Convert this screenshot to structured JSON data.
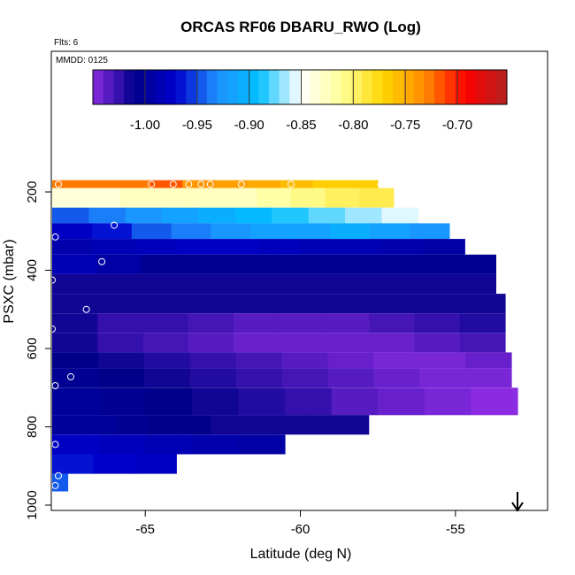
{
  "chart_data": {
    "type": "heatmap",
    "title": "ORCAS RF06 DBARU_RWO (Log)",
    "flts_label": "Flts: 6",
    "date_label": "MMDD: 0125",
    "xlabel": "Latitude (deg N)",
    "ylabel": "PSXC (mbar)",
    "xlim": [
      -68.0,
      -52.0
    ],
    "ylim": [
      1000,
      100
    ],
    "x_ticks": [
      -65,
      -60,
      -55
    ],
    "x_tick_labels": [
      "-65",
      "-60",
      "-55"
    ],
    "y_ticks": [
      200,
      400,
      600,
      800,
      1000
    ],
    "y_tick_labels": [
      "200",
      "400",
      "600",
      "800",
      "1000"
    ],
    "colorbar": {
      "vmin": -1.045,
      "vmax": -0.645,
      "ticks": [
        -1.0,
        -0.95,
        -0.9,
        -0.85,
        -0.8,
        -0.75,
        -0.7
      ],
      "tick_labels": [
        "-1.00",
        "-0.95",
        "-0.90",
        "-0.85",
        "-0.80",
        "-0.75",
        "-0.70"
      ],
      "colors": [
        "#8a2be2",
        "#00008b",
        "#0000cd",
        "#1e90ff",
        "#00bfff",
        "#ffffff",
        "#ffff99",
        "#ffd700",
        "#ff8c00",
        "#ff0000",
        "#b22222"
      ]
    },
    "bands": [
      {
        "p": [
          170,
          190
        ],
        "x_end": -57.5,
        "values": [
          -0.72,
          -0.72,
          -0.72,
          -0.71,
          -0.73,
          -0.735,
          -0.74,
          -0.75,
          -0.76,
          -0.76
        ]
      },
      {
        "p": [
          190,
          240
        ],
        "x_end": -57.0,
        "values": [
          -0.83,
          -0.83,
          -0.82,
          -0.82,
          -0.82,
          -0.82,
          -0.81,
          -0.8,
          -0.79,
          -0.785
        ]
      },
      {
        "p": [
          240,
          280
        ],
        "x_end": -56.2,
        "values": [
          -0.94,
          -0.93,
          -0.92,
          -0.91,
          -0.9,
          -0.89,
          -0.88,
          -0.87,
          -0.86,
          -0.85
        ]
      },
      {
        "p": [
          280,
          320
        ],
        "x_end": -55.2,
        "values": [
          -0.97,
          -0.96,
          -0.94,
          -0.93,
          -0.92,
          -0.91,
          -0.91,
          -0.9,
          -0.91,
          -0.92
        ]
      },
      {
        "p": [
          320,
          360
        ],
        "x_end": -54.7,
        "values": [
          -0.985,
          -0.98,
          -0.975,
          -0.97,
          -0.97,
          -0.975,
          -0.98,
          -0.98,
          -0.985,
          -0.99
        ]
      },
      {
        "p": [
          360,
          410
        ],
        "x_end": -53.7,
        "values": [
          -0.98,
          -0.99,
          -1.0,
          -1.0,
          -1.0,
          -1.0,
          -1.0,
          -1.0,
          -1.0,
          -1.0
        ]
      },
      {
        "p": [
          410,
          460
        ],
        "x_end": -53.7,
        "values": [
          -1.01,
          -1.01,
          -1.01,
          -1.01,
          -1.01,
          -1.01,
          -1.01,
          -1.01,
          -1.01,
          -1.01
        ]
      },
      {
        "p": [
          460,
          510
        ],
        "x_end": -53.4,
        "values": [
          -1.01,
          -1.01,
          -1.01,
          -1.01,
          -1.01,
          -1.01,
          -1.01,
          -1.01,
          -1.01,
          -1.01
        ]
      },
      {
        "p": [
          510,
          560
        ],
        "x_end": -53.4,
        "values": [
          -1.01,
          -1.02,
          -1.02,
          -1.025,
          -1.03,
          -1.03,
          -1.03,
          -1.025,
          -1.02,
          -1.015
        ]
      },
      {
        "p": [
          560,
          610
        ],
        "x_end": -53.4,
        "values": [
          -1.01,
          -1.02,
          -1.025,
          -1.03,
          -1.035,
          -1.035,
          -1.035,
          -1.035,
          -1.03,
          -1.025
        ]
      },
      {
        "p": [
          610,
          650
        ],
        "x_end": -53.2,
        "values": [
          -1.005,
          -1.01,
          -1.015,
          -1.02,
          -1.025,
          -1.03,
          -1.035,
          -1.04,
          -1.04,
          -1.035
        ]
      },
      {
        "p": [
          650,
          700
        ],
        "x_end": -53.2,
        "values": [
          -1.0,
          -1.005,
          -1.01,
          -1.015,
          -1.02,
          -1.025,
          -1.03,
          -1.035,
          -1.04,
          -1.04
        ]
      },
      {
        "p": [
          700,
          770
        ],
        "x_end": -53.0,
        "values": [
          -0.995,
          -1.0,
          -1.005,
          -1.01,
          -1.015,
          -1.02,
          -1.03,
          -1.035,
          -1.04,
          -1.045
        ]
      },
      {
        "p": [
          770,
          820
        ],
        "x_end": -57.8,
        "values": [
          -0.995,
          -0.995,
          -1.0,
          -1.005,
          -1.005,
          -1.01,
          -1.01,
          -1.01,
          -1.01,
          -1.01
        ]
      },
      {
        "p": [
          820,
          870
        ],
        "x_end": -60.5,
        "values": [
          -0.97,
          -0.975,
          -0.98,
          -0.985,
          -0.99
        ]
      },
      {
        "p": [
          870,
          920
        ],
        "x_end": -64.0,
        "values": [
          -0.96,
          -0.965,
          -0.97
        ]
      },
      {
        "p": [
          920,
          965
        ],
        "x_end": -67.5,
        "values": [
          -0.94
        ]
      }
    ],
    "obs_points": [
      {
        "x": -67.8,
        "p": 180
      },
      {
        "x": -64.8,
        "p": 180
      },
      {
        "x": -64.1,
        "p": 180
      },
      {
        "x": -63.6,
        "p": 180
      },
      {
        "x": -63.2,
        "p": 180
      },
      {
        "x": -62.9,
        "p": 180
      },
      {
        "x": -61.9,
        "p": 180
      },
      {
        "x": -60.3,
        "p": 180
      },
      {
        "x": -57.4,
        "p": 180
      },
      {
        "x": -66.0,
        "p": 285
      },
      {
        "x": -67.9,
        "p": 315
      },
      {
        "x": -66.4,
        "p": 378
      },
      {
        "x": -68.0,
        "p": 425
      },
      {
        "x": -53.1,
        "p": 445
      },
      {
        "x": -66.9,
        "p": 500
      },
      {
        "x": -68.0,
        "p": 550
      },
      {
        "x": -67.4,
        "p": 672
      },
      {
        "x": -67.9,
        "p": 695
      },
      {
        "x": -52.8,
        "p": 728
      },
      {
        "x": -67.9,
        "p": 845
      },
      {
        "x": -67.8,
        "p": 925
      },
      {
        "x": -67.9,
        "p": 950
      }
    ],
    "arrow_at_lat": -53.0
  }
}
